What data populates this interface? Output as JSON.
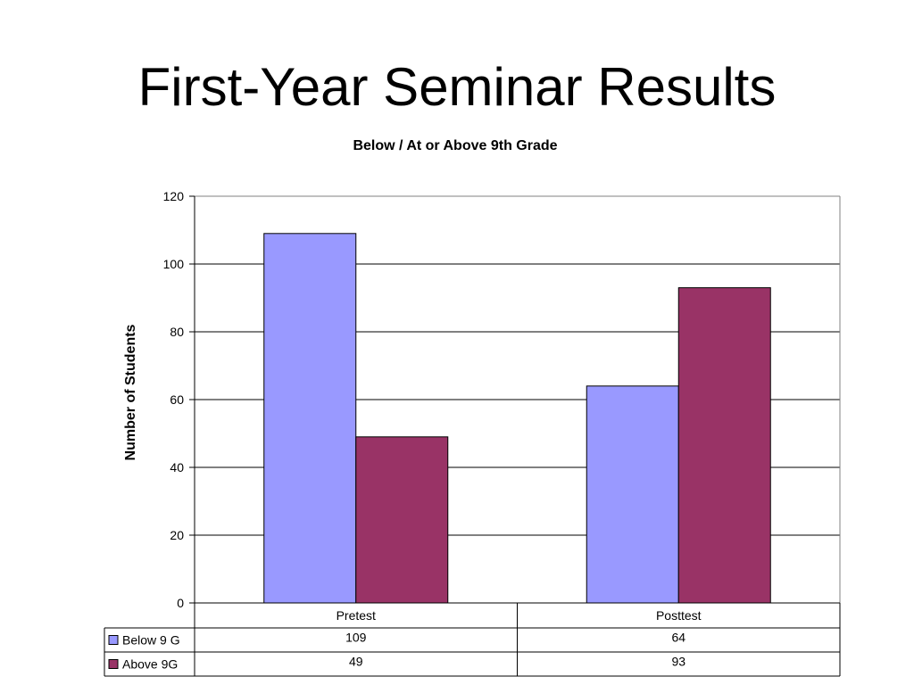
{
  "slide": {
    "title": "First-Year Seminar Results"
  },
  "chart_data": {
    "type": "bar",
    "title": "Below / At or Above 9th Grade",
    "xlabel": "",
    "ylabel": "Number of Students",
    "ylim": [
      0,
      120
    ],
    "yticks": [
      "0",
      "20",
      "40",
      "60",
      "80",
      "100",
      "120"
    ],
    "categories": [
      "Pretest",
      "Posttest"
    ],
    "series": [
      {
        "name": "Below 9 G",
        "values": [
          109,
          64
        ],
        "color": "#9999ff"
      },
      {
        "name": "Above 9G",
        "values": [
          49,
          93
        ],
        "color": "#993366"
      }
    ],
    "grid": true,
    "legend": "data-table-left"
  }
}
